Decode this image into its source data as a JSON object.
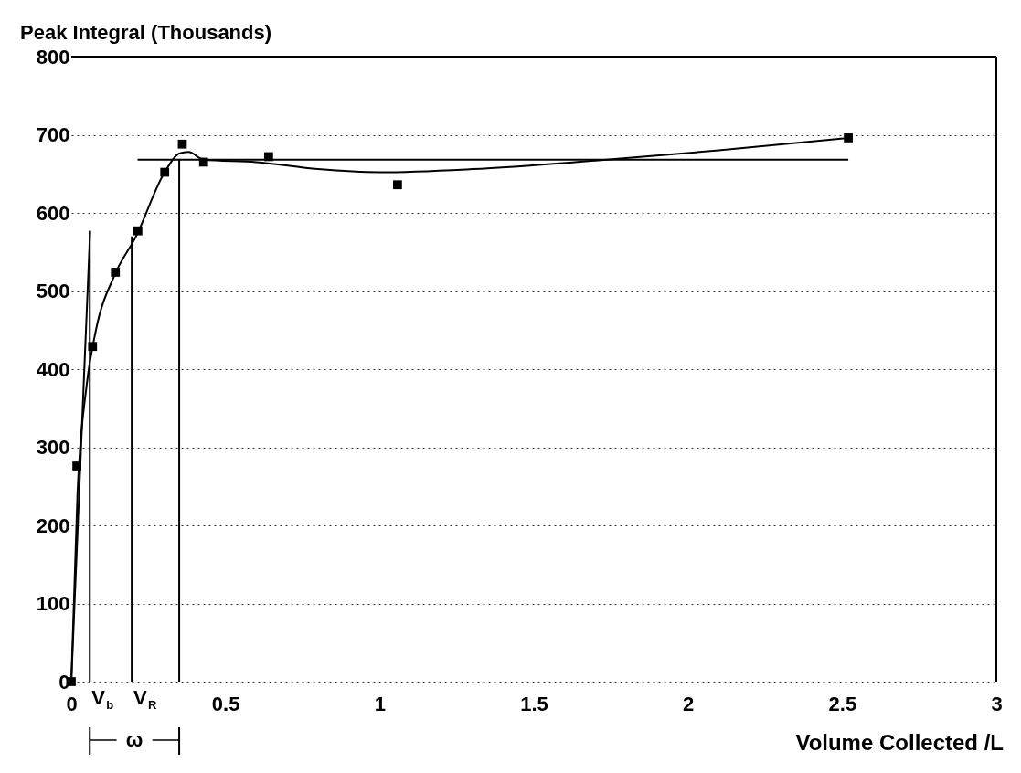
{
  "chart_data": {
    "type": "scatter",
    "ylabel": "Peak Integral (Thousands)",
    "xlabel": "Volume Collected /L",
    "xlim": [
      0,
      3
    ],
    "xticks": [
      0,
      0.5,
      1,
      1.5,
      2,
      2.5,
      3
    ],
    "ylim": [
      0,
      800
    ],
    "yticks": [
      0,
      100,
      200,
      300,
      400,
      500,
      600,
      700,
      800
    ],
    "grid": "y",
    "series": [
      {
        "marker": "square",
        "color": "#000000",
        "x": [
          0,
          0.018,
          0.069,
          0.143,
          0.216,
          0.303,
          0.36,
          0.429,
          0.64,
          1.058,
          2.52
        ],
        "values": [
          0,
          276,
          429,
          524,
          577,
          652,
          688,
          665,
          672,
          636,
          696
        ]
      },
      {
        "type": "line",
        "color": "#000000",
        "x": [
          0,
          0.02,
          0.05,
          0.08,
          0.14,
          0.21,
          0.3,
          0.35,
          0.38,
          0.43,
          0.6,
          0.8,
          1.0,
          1.3,
          1.7,
          2.1,
          2.52
        ],
        "values": [
          0,
          240,
          380,
          450,
          520,
          570,
          650,
          676,
          678,
          668,
          665,
          656,
          652,
          656,
          667,
          680,
          696
        ]
      },
      {
        "type": "line",
        "color": "#000000",
        "x": [
          0.215,
          2.52
        ],
        "values": [
          668,
          668
        ]
      },
      {
        "type": "line",
        "color": "#000000",
        "x": [
          0,
          0.061
        ],
        "values": [
          0,
          577
        ]
      },
      {
        "type": "line",
        "color": "#000000",
        "x": [
          0.06,
          0.06
        ],
        "values": [
          0,
          577
        ]
      },
      {
        "type": "line",
        "color": "#000000",
        "x": [
          0.196,
          0.196
        ],
        "values": [
          0,
          570
        ]
      },
      {
        "type": "line",
        "color": "#000000",
        "x": [
          0.35,
          0.35
        ],
        "values": [
          0,
          668
        ]
      }
    ],
    "annotations": [
      {
        "text": "V$_{b}$",
        "x": 0.06,
        "y": 0
      },
      {
        "text": "V$_{R}$",
        "x": 0.196,
        "y": 0
      },
      "ω"
    ]
  }
}
